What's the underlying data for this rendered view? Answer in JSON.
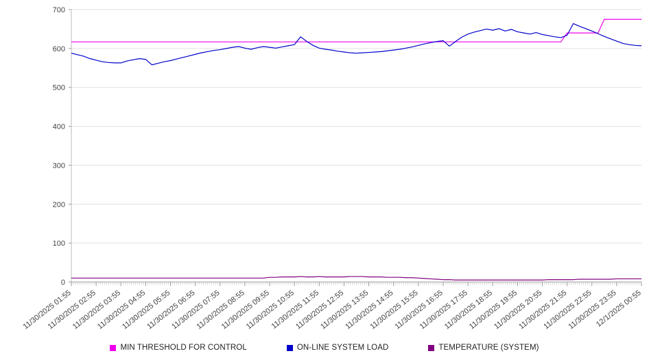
{
  "legend": [
    {
      "label": "MIN THRESHOLD FOR CONTROL",
      "color": "#ee00ee"
    },
    {
      "label": "ON-LINE SYSTEM LOAD",
      "color": "#0000cc"
    },
    {
      "label": "TEMPERATURE (SYSTEM)",
      "color": "#800080"
    }
  ],
  "chart_data": {
    "type": "line",
    "title": "",
    "xlabel": "",
    "ylabel": "",
    "ylim": [
      0,
      700
    ],
    "y_ticks": [
      0,
      100,
      200,
      300,
      400,
      500,
      600,
      700
    ],
    "grid": "horizontal",
    "legend_position": "bottom",
    "x_tick_every": 4,
    "x_minor_ticks": 276,
    "x_tick_labels": [
      "11/30/2025 01:55",
      "11/30/2025 02:55",
      "11/30/2025 03:55",
      "11/30/2025 04:55",
      "11/30/2025 05:55",
      "11/30/2025 06:55",
      "11/30/2025 07:55",
      "11/30/2025 08:55",
      "11/30/2025 09:55",
      "11/30/2025 10:55",
      "11/30/2025 11:55",
      "11/30/2025 12:55",
      "11/30/2025 13:55",
      "11/30/2025 14:55",
      "11/30/2025 15:55",
      "11/30/2025 16:55",
      "11/30/2025 17:55",
      "11/30/2025 18:55",
      "11/30/2025 19:55",
      "11/30/2025 20:55",
      "11/30/2025 21:55",
      "11/30/2025 22:55",
      "11/30/2025 23:55",
      "12/1/2025 00:55"
    ],
    "sample_interval_minutes": 15,
    "series": [
      {
        "name": "MIN THRESHOLD FOR CONTROL",
        "color": "#ee00ee",
        "values": [
          617,
          617,
          617,
          617,
          617,
          617,
          617,
          617,
          617,
          617,
          617,
          617,
          617,
          617,
          617,
          617,
          617,
          617,
          617,
          617,
          617,
          617,
          617,
          617,
          617,
          617,
          617,
          617,
          617,
          617,
          617,
          617,
          617,
          617,
          617,
          617,
          617,
          617,
          617,
          617,
          617,
          617,
          617,
          617,
          617,
          617,
          617,
          617,
          617,
          617,
          617,
          617,
          617,
          617,
          617,
          617,
          617,
          617,
          617,
          617,
          617,
          617,
          617,
          617,
          617,
          617,
          617,
          617,
          617,
          617,
          617,
          617,
          617,
          617,
          617,
          617,
          617,
          617,
          617,
          617,
          640,
          640,
          640,
          640,
          640,
          640,
          675,
          675,
          675,
          675,
          675,
          675,
          675
        ]
      },
      {
        "name": "ON-LINE SYSTEM LOAD",
        "color": "#0000cc",
        "values": [
          588,
          584,
          580,
          574,
          570,
          566,
          564,
          563,
          563,
          568,
          571,
          574,
          572,
          558,
          562,
          566,
          569,
          573,
          577,
          581,
          585,
          589,
          592,
          595,
          597,
          600,
          603,
          605,
          601,
          598,
          602,
          605,
          603,
          601,
          604,
          607,
          610,
          630,
          618,
          608,
          601,
          598,
          596,
          593,
          591,
          589,
          588,
          589,
          590,
          591,
          592,
          594,
          596,
          598,
          601,
          604,
          608,
          612,
          615,
          618,
          620,
          606,
          618,
          629,
          637,
          642,
          646,
          650,
          647,
          651,
          645,
          649,
          643,
          640,
          637,
          641,
          636,
          633,
          630,
          628,
          634,
          664,
          657,
          651,
          645,
          638,
          631,
          625,
          619,
          613,
          610,
          608,
          607
        ]
      },
      {
        "name": "TEMPERATURE (SYSTEM)",
        "color": "#800080",
        "values": [
          10,
          10,
          10,
          10,
          10,
          10,
          10,
          10,
          10,
          10,
          10,
          10,
          10,
          10,
          10,
          10,
          10,
          10,
          10,
          10,
          10,
          10,
          10,
          10,
          10,
          10,
          10,
          10,
          10,
          10,
          10,
          10,
          12,
          12,
          13,
          13,
          13,
          14,
          13,
          13,
          14,
          13,
          13,
          13,
          13,
          14,
          14,
          14,
          13,
          13,
          13,
          12,
          12,
          12,
          11,
          11,
          10,
          9,
          8,
          7,
          6,
          6,
          5,
          5,
          5,
          5,
          5,
          5,
          5,
          5,
          5,
          5,
          5,
          5,
          5,
          5,
          5,
          6,
          6,
          6,
          6,
          6,
          7,
          7,
          7,
          7,
          7,
          7,
          8,
          8,
          8,
          8,
          8
        ]
      }
    ]
  }
}
